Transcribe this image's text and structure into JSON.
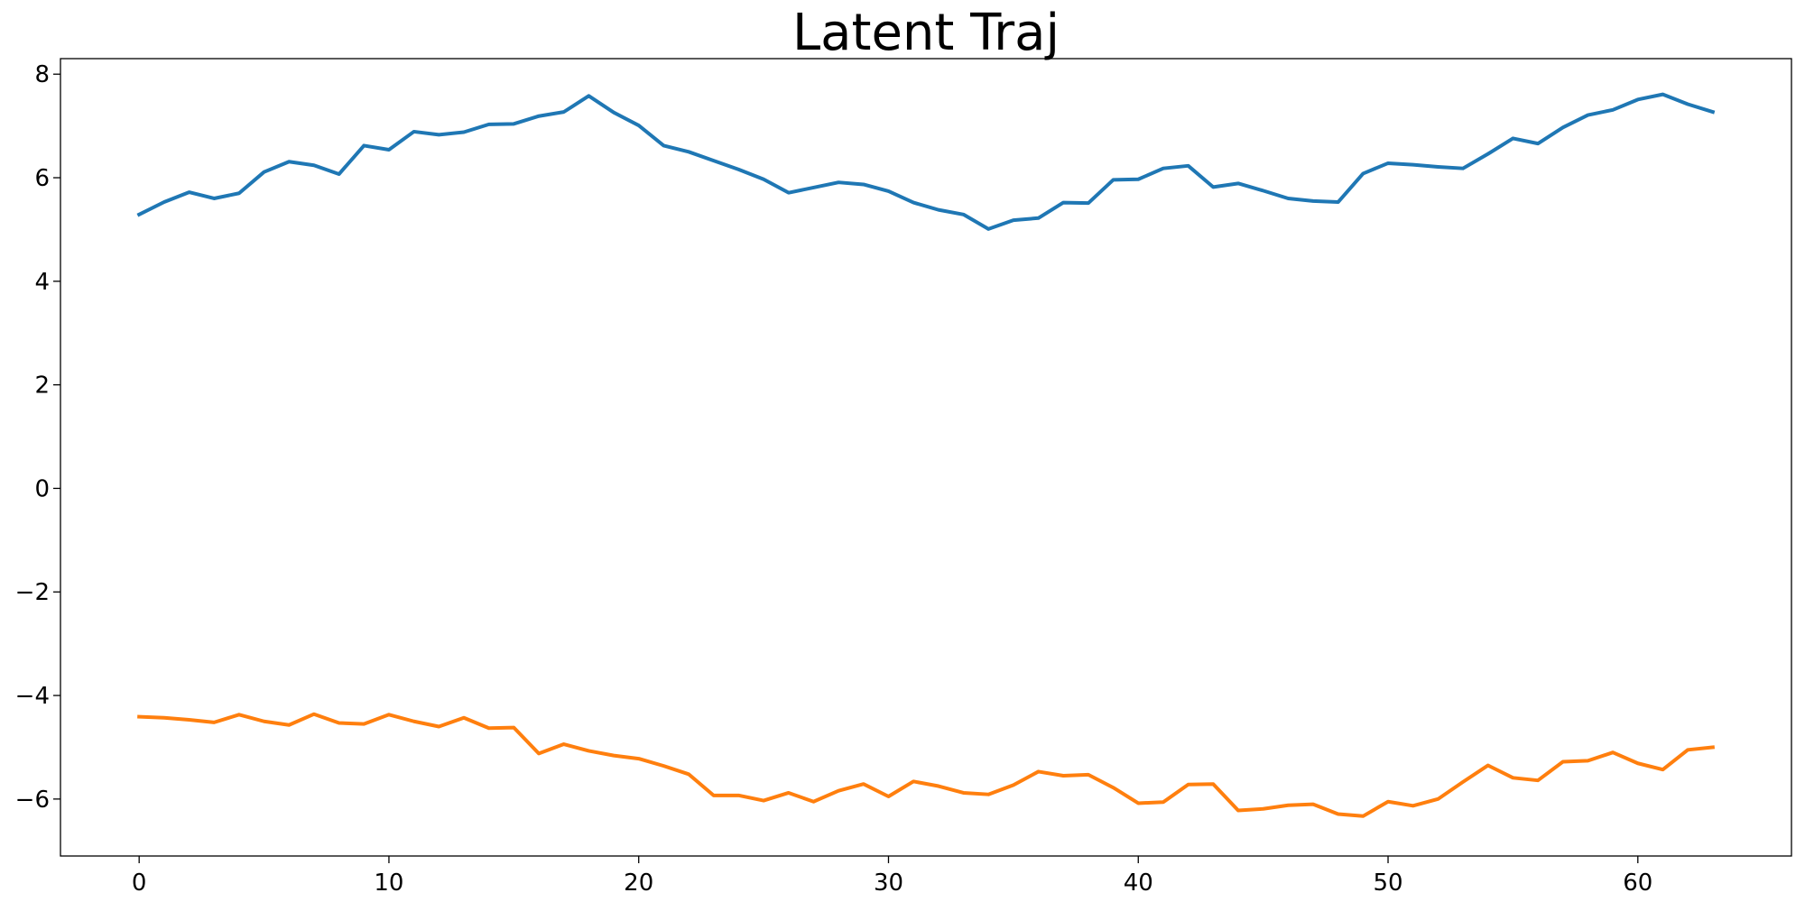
{
  "chart_data": {
    "type": "line",
    "title": "Latent Traj",
    "xlabel": "",
    "ylabel": "",
    "xlim": [
      -3.15,
      66.15
    ],
    "ylim": [
      -7.1,
      8.3
    ],
    "x_ticks": [
      0,
      10,
      20,
      30,
      40,
      50,
      60
    ],
    "y_ticks": [
      -6,
      -4,
      -2,
      0,
      2,
      4,
      6,
      8
    ],
    "x_tick_labels": [
      "0",
      "10",
      "20",
      "30",
      "40",
      "50",
      "60"
    ],
    "y_tick_labels": [
      "−6",
      "−4",
      "−2",
      "0",
      "2",
      "4",
      "6",
      "8"
    ],
    "grid": false,
    "legend": "none",
    "x": [
      0,
      1,
      2,
      3,
      4,
      5,
      6,
      7,
      8,
      9,
      10,
      11,
      12,
      13,
      14,
      15,
      16,
      17,
      18,
      19,
      20,
      21,
      22,
      23,
      24,
      25,
      26,
      27,
      28,
      29,
      30,
      31,
      32,
      33,
      34,
      35,
      36,
      37,
      38,
      39,
      40,
      41,
      42,
      43,
      44,
      45,
      46,
      47,
      48,
      49,
      50,
      51,
      52,
      53,
      54,
      55,
      56,
      57,
      58,
      59,
      60,
      61,
      62,
      63
    ],
    "series": [
      {
        "color": "#1f77b4",
        "values": [
          5.29,
          5.53,
          5.72,
          5.6,
          5.7,
          6.11,
          6.31,
          6.24,
          6.07,
          6.62,
          6.54,
          6.89,
          6.83,
          6.88,
          7.03,
          7.04,
          7.19,
          7.27,
          7.58,
          7.26,
          7.01,
          6.62,
          6.5,
          6.33,
          6.16,
          5.97,
          5.71,
          5.81,
          5.91,
          5.87,
          5.74,
          5.52,
          5.38,
          5.29,
          5.01,
          5.18,
          5.22,
          5.52,
          5.51,
          5.96,
          5.97,
          6.18,
          6.23,
          5.82,
          5.89,
          5.75,
          5.6,
          5.55,
          5.53,
          6.08,
          6.28,
          6.25,
          6.21,
          6.18,
          6.46,
          6.76,
          6.66,
          6.97,
          7.21,
          7.31,
          7.51,
          7.61,
          7.42,
          7.27
        ]
      },
      {
        "color": "#ff7f0e",
        "values": [
          -4.41,
          -4.43,
          -4.47,
          -4.52,
          -4.37,
          -4.5,
          -4.57,
          -4.36,
          -4.53,
          -4.55,
          -4.37,
          -4.5,
          -4.6,
          -4.43,
          -4.63,
          -4.62,
          -5.12,
          -4.94,
          -5.07,
          -5.16,
          -5.22,
          -5.36,
          -5.52,
          -5.93,
          -5.93,
          -6.03,
          -5.88,
          -6.05,
          -5.84,
          -5.71,
          -5.95,
          -5.66,
          -5.75,
          -5.88,
          -5.91,
          -5.73,
          -5.47,
          -5.55,
          -5.53,
          -5.78,
          -6.08,
          -6.06,
          -5.72,
          -5.71,
          -6.22,
          -6.19,
          -6.12,
          -6.1,
          -6.29,
          -6.33,
          -6.05,
          -6.13,
          -6.0,
          -5.67,
          -5.35,
          -5.59,
          -5.64,
          -5.28,
          -5.26,
          -5.1,
          -5.31,
          -5.43,
          -5.05,
          -5.0
        ]
      }
    ]
  }
}
